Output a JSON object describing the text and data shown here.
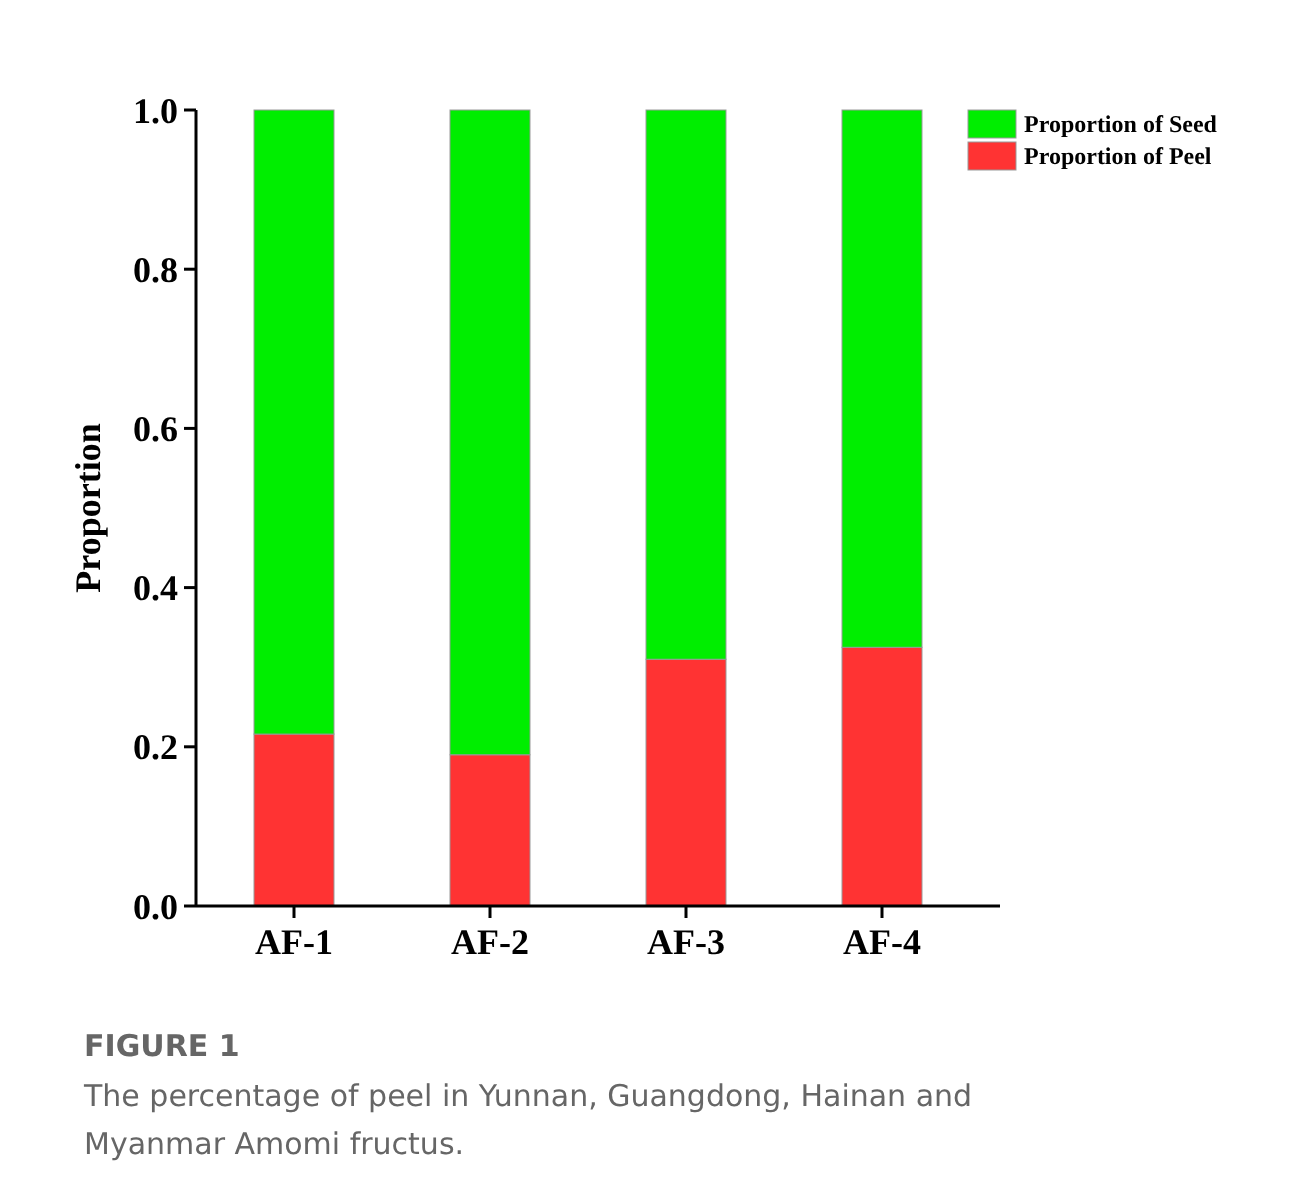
{
  "chart_data": {
    "type": "bar",
    "stacked": true,
    "title": "FIGURE 1",
    "subtitle": "The percentage of peel in Yunnan, Guangdong, Hainan and Myanmar Amomi fructus.",
    "ylabel": "Proportion",
    "categories": [
      "AF-1",
      "AF-2",
      "AF-3",
      "AF-4"
    ],
    "series": [
      {
        "name": "Proportion of Peel",
        "color": "#ff3333",
        "values": [
          0.216,
          0.19,
          0.31,
          0.325
        ]
      },
      {
        "name": "Proportion of Seed",
        "color": "#00ee00",
        "values": [
          0.784,
          0.81,
          0.69,
          0.675
        ]
      }
    ],
    "ylim": [
      0,
      1
    ],
    "yticks": [
      {
        "value": 0,
        "label": "0.0"
      },
      {
        "value": 0.2,
        "label": "0.2"
      },
      {
        "value": 0.4,
        "label": "0.4"
      },
      {
        "value": 0.6,
        "label": "0.6"
      },
      {
        "value": 0.8,
        "label": "0.8"
      },
      {
        "value": 1,
        "label": "1.0"
      }
    ],
    "grid": false,
    "legend": "top right"
  }
}
